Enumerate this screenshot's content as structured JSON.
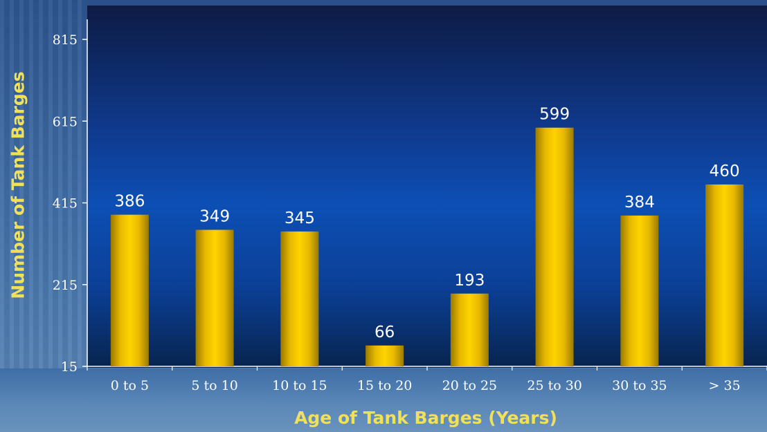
{
  "chart_data": {
    "type": "bar",
    "categories": [
      "0 to 5",
      "5 to 10",
      "10 to 15",
      "15 to 20",
      "20 to 25",
      "25 to 30",
      "30 to 35",
      "> 35"
    ],
    "values": [
      386,
      349,
      345,
      66,
      193,
      599,
      384,
      460
    ],
    "xlabel": "Age of Tank Barges (Years)",
    "ylabel": "Number of Tank Barges",
    "yticks": [
      15,
      215,
      415,
      615,
      815
    ],
    "ylim": [
      15,
      815
    ],
    "grid": false,
    "legend": "none",
    "colors": {
      "bar": "#f2c400",
      "bar_dark": "#9a7a00",
      "axis_text": "#ffffff",
      "data_label": "#ffffff",
      "title_text": "#f0e05a"
    }
  }
}
